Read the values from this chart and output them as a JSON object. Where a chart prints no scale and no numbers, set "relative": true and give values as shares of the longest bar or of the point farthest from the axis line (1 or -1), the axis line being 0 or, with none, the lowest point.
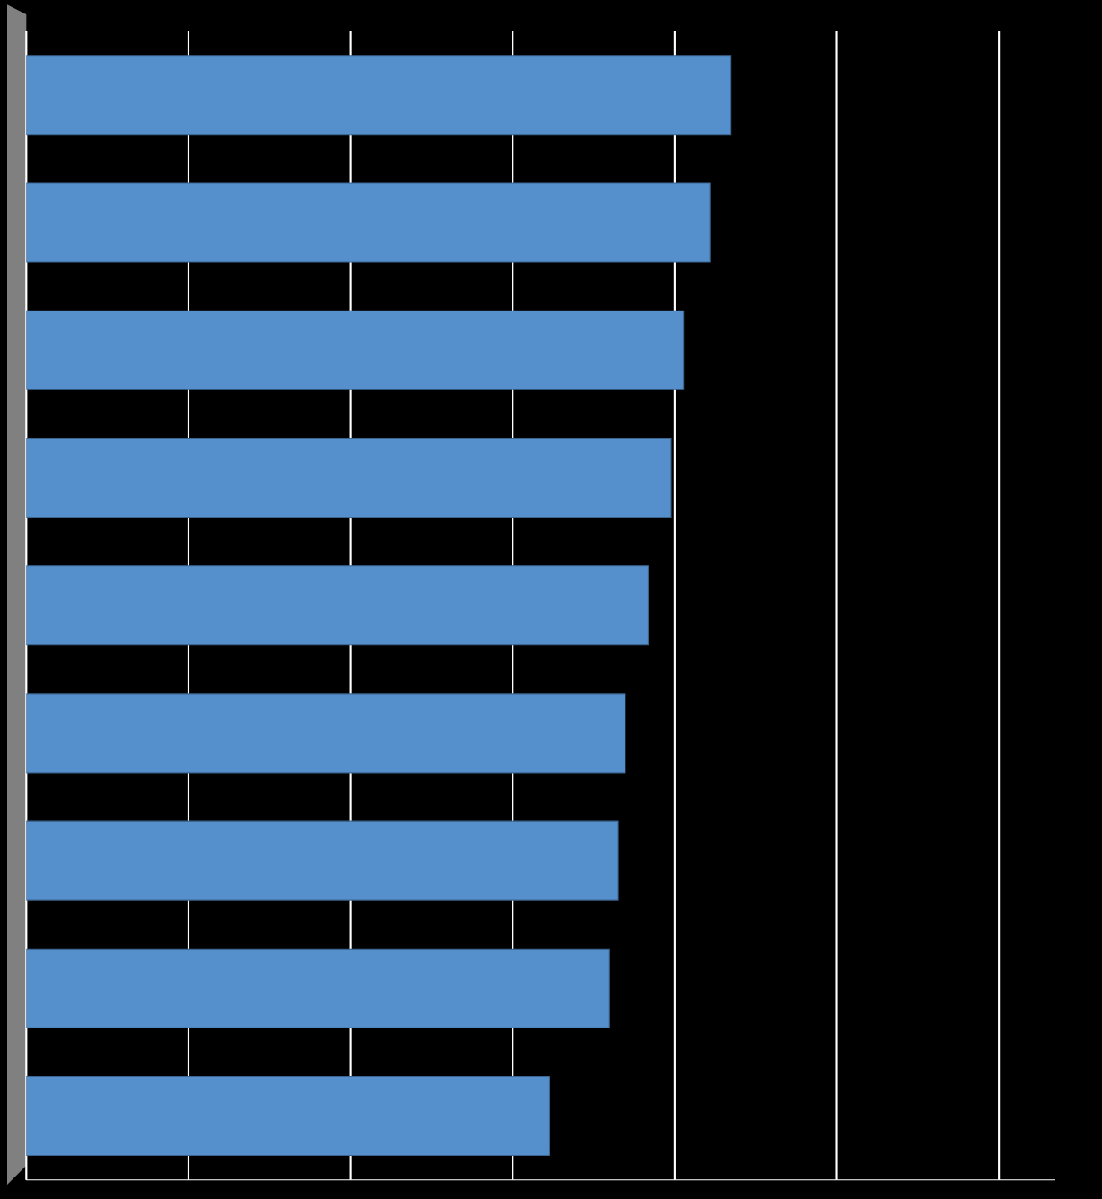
{
  "chart_data": {
    "type": "bar",
    "orientation": "horizontal",
    "relative": true,
    "grid": "x",
    "categories": [
      null,
      null,
      null,
      null,
      null,
      null,
      null,
      null,
      null
    ],
    "values": [
      1,
      0.97,
      0.9325,
      0.915,
      0.8825,
      0.85,
      0.84,
      0.8275,
      0.7425
    ],
    "color": "#5590cc"
  }
}
